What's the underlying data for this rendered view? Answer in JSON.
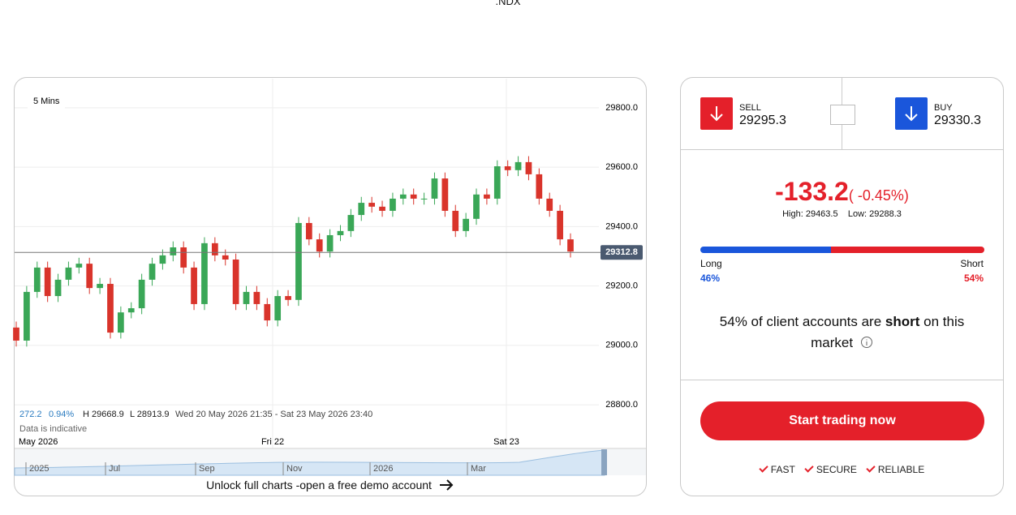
{
  "header": {
    "title": ".NDX"
  },
  "chart_data": {
    "type": "candlestick",
    "interval": "5 Mins",
    "open": [
      29060,
      29016,
      29180,
      29262,
      29166,
      29221,
      29262,
      29275,
      29193,
      29207,
      29043,
      29111,
      29125,
      29221,
      29275,
      29303,
      29330,
      29262,
      29139,
      29344,
      29303,
      29289,
      29139,
      29180,
      29139,
      29084,
      29166,
      29153,
      29412,
      29357,
      29316,
      29371,
      29385,
      29439,
      29480,
      29467,
      29453,
      29494,
      29508,
      29494,
      29494,
      29562,
      29453,
      29385,
      29426,
      29508,
      29494,
      29603,
      29590,
      29617,
      29576,
      29494,
      29453,
      29357
    ],
    "high": [
      29080,
      29200,
      29282,
      29282,
      29241,
      29282,
      29295,
      29295,
      29227,
      29227,
      29131,
      29145,
      29241,
      29295,
      29323,
      29350,
      29350,
      29282,
      29364,
      29364,
      29323,
      29309,
      29200,
      29200,
      29159,
      29186,
      29186,
      29432,
      29432,
      29377,
      29391,
      29405,
      29459,
      29500,
      29500,
      29487,
      29514,
      29528,
      29528,
      29514,
      29582,
      29582,
      29473,
      29446,
      29528,
      29528,
      29623,
      29623,
      29637,
      29637,
      29596,
      29514,
      29473,
      29377
    ],
    "low": [
      28996,
      28996,
      29160,
      29146,
      29146,
      29201,
      29242,
      29173,
      29173,
      29023,
      29023,
      29091,
      29105,
      29201,
      29255,
      29283,
      29242,
      29119,
      29119,
      29283,
      29269,
      29119,
      29119,
      29119,
      29064,
      29064,
      29133,
      29133,
      29337,
      29296,
      29296,
      29351,
      29365,
      29419,
      29447,
      29433,
      29433,
      29474,
      29474,
      29474,
      29474,
      29433,
      29365,
      29365,
      29406,
      29474,
      29474,
      29570,
      29570,
      29556,
      29474,
      29433,
      29337,
      29296
    ],
    "close": [
      29016,
      29180,
      29262,
      29166,
      29221,
      29262,
      29275,
      29193,
      29207,
      29043,
      29111,
      29125,
      29221,
      29275,
      29303,
      29330,
      29262,
      29139,
      29344,
      29303,
      29289,
      29139,
      29180,
      29139,
      29084,
      29166,
      29153,
      29412,
      29357,
      29316,
      29371,
      29385,
      29439,
      29480,
      29467,
      29453,
      29494,
      29508,
      29494,
      29494,
      29562,
      29453,
      29385,
      29426,
      29508,
      29494,
      29603,
      29590,
      29617,
      29576,
      29494,
      29453,
      29357,
      29316
    ],
    "up_color": "#3aa757",
    "down_color": "#d9342b",
    "ylim": [
      28792,
      29898
    ],
    "yticks": [
      {
        "value": 28800,
        "label": "28800.0"
      },
      {
        "value": 29000,
        "label": "29000.0"
      },
      {
        "value": 29200,
        "label": "29200.0"
      },
      {
        "value": 29400,
        "label": "29400.0"
      },
      {
        "value": 29600,
        "label": "29600.0"
      },
      {
        "value": 29800,
        "label": "29800.0"
      }
    ],
    "current_price": 29312.8,
    "xlabels": [
      "May 2026",
      "Fri 22",
      "Sat 23"
    ],
    "stats": {
      "change": "272.2",
      "change_pct": "0.94%",
      "high": "H 29668.9",
      "low": "L 28913.9",
      "range": "Wed 20 May 2026 21:35 - Sat 23 May 2026 23:40"
    },
    "note": "Data is indicative",
    "navigator_labels": [
      "2025",
      "Jul",
      "Sep",
      "Nov",
      "2026",
      "Mar"
    ],
    "unlock": "Unlock full charts -open a free demo account"
  },
  "panel": {
    "sell": {
      "label": "SELL",
      "price": "29295.3"
    },
    "buy": {
      "label": "BUY",
      "price": "29330.3"
    },
    "change": "-133.2",
    "change_pct": "( -0.45%)",
    "high": "High: 29463.5",
    "low": "Low: 29288.3",
    "sentiment": {
      "long_label": "Long",
      "short_label": "Short",
      "long": 46,
      "long_text": "46%",
      "short": 54,
      "short_text": "54%",
      "long_color": "#1a56db",
      "short_color": "#e4202a"
    },
    "message": {
      "start": "54% of client accounts are ",
      "bold": "short",
      "end": " on this market"
    },
    "button": "Start trading now",
    "features": [
      "FAST",
      "SECURE",
      "RELIABLE"
    ]
  }
}
